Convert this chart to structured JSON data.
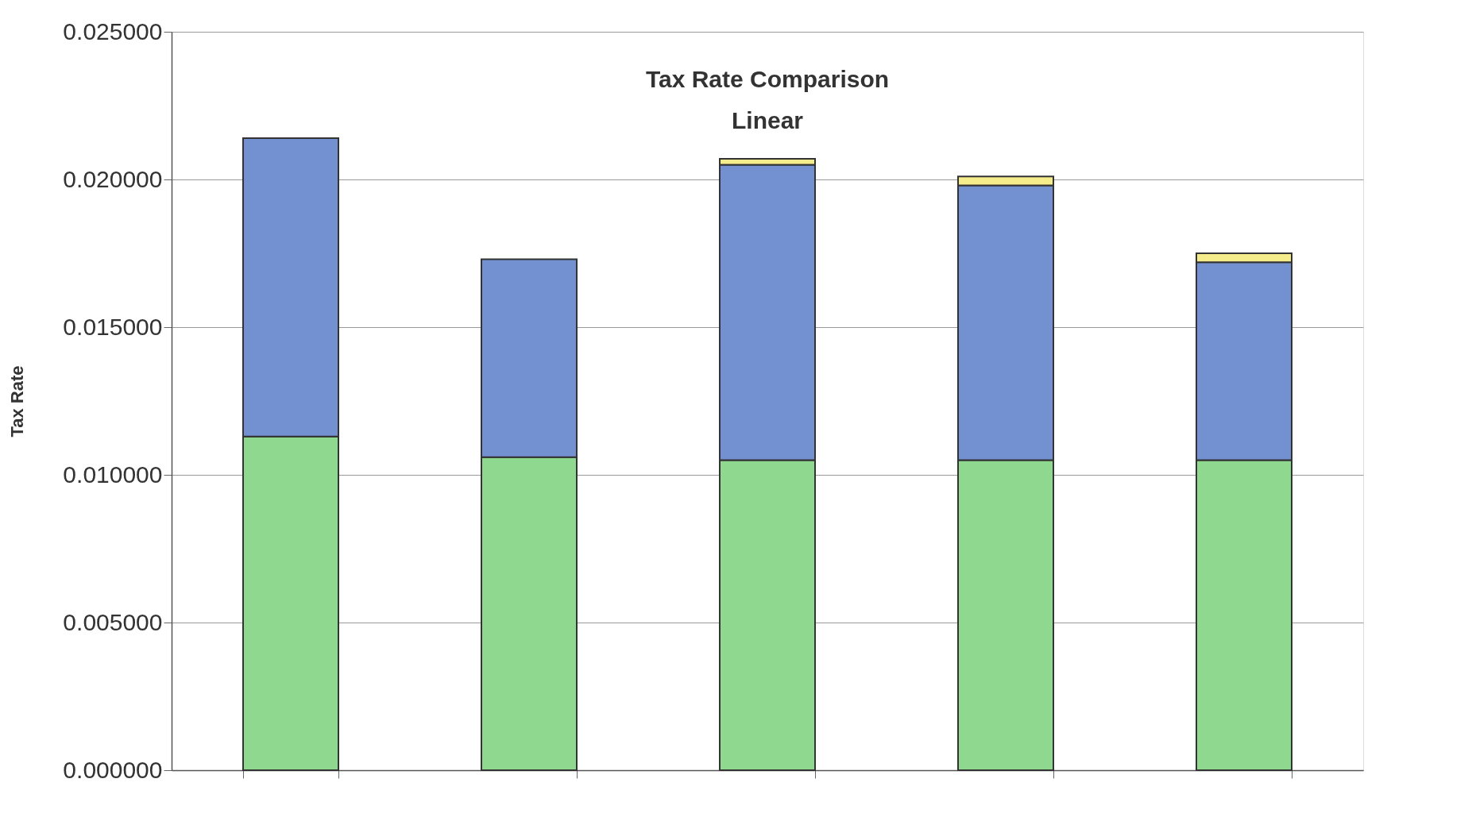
{
  "chart_data": {
    "type": "bar",
    "title": "Tax Rate Comparison",
    "subtitle": "Linear",
    "ylabel": "Tax Rate",
    "categories": [
      null,
      null,
      null,
      null,
      null
    ],
    "stacked": true,
    "series": [
      {
        "color": "#8fd88f",
        "values": [
          0.0113,
          0.0106,
          0.0105,
          0.0105,
          0.0105
        ]
      },
      {
        "color": "#7391d1",
        "values": [
          0.0101,
          0.0067,
          0.01,
          0.0093,
          0.0067
        ]
      },
      {
        "color": "#f5ec8c",
        "values": [
          null,
          null,
          0.0002,
          0.0003,
          0.0003
        ]
      }
    ],
    "ylim": [
      0,
      0.025
    ],
    "yticks": [
      {
        "value": 0,
        "label": "0.000000"
      },
      {
        "value": 0.005,
        "label": "0.005000"
      },
      {
        "value": 0.01,
        "label": "0.010000"
      },
      {
        "value": 0.015,
        "label": "0.015000"
      },
      {
        "value": 0.02,
        "label": "0.020000"
      },
      {
        "value": 0.025,
        "label": "0.025000"
      }
    ],
    "grid": "y"
  }
}
